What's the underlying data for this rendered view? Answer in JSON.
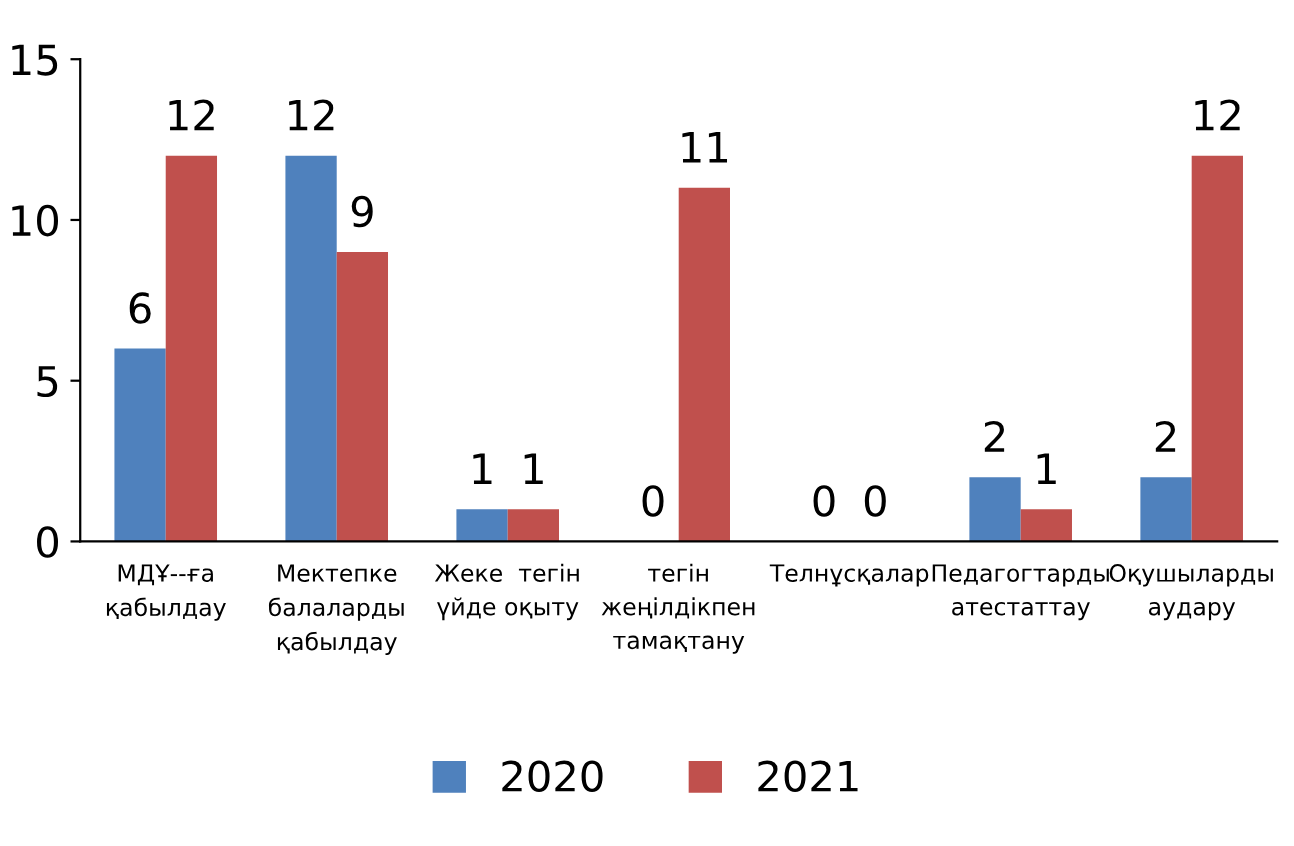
{
  "chart_data": {
    "type": "bar",
    "categories": [
      "МДҰ--ға\nқабылдау",
      "Мектепке\nбалаларды\nқабылдау",
      "Жеке  тегін\nүйде оқыту",
      "тегін\nжеңілдікпен\nтамақтану",
      "Телнұсқалар",
      "Педагогтарды\nатестаттау",
      "Оқушыларды\nаудару"
    ],
    "series": [
      {
        "name": "2020",
        "color": "#4f81bd",
        "values": [
          6,
          12,
          1,
          0,
          0,
          2,
          2
        ]
      },
      {
        "name": "2021",
        "color": "#c0504d",
        "values": [
          12,
          9,
          1,
          11,
          0,
          1,
          12
        ]
      }
    ],
    "ylim": [
      0,
      15
    ],
    "yticks": [
      0,
      5,
      10,
      15
    ],
    "grid": false,
    "legend": "bottom",
    "data_labels": true
  }
}
